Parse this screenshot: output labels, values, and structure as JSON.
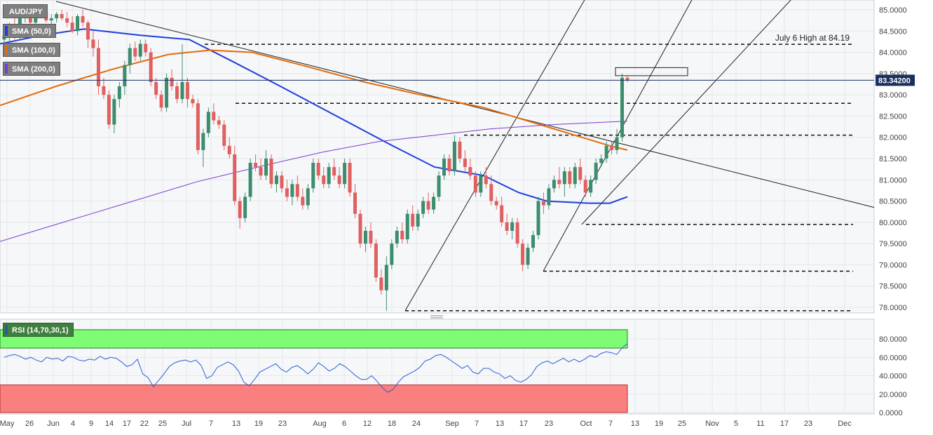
{
  "chart_data": [
    {
      "type": "candlestick",
      "instrument": "AUD/JPY",
      "ylim": [
        77.9,
        85.2
      ],
      "y_ticks": [
        "85.0000",
        "84.5000",
        "84.0000",
        "83.5000",
        "83.0000",
        "82.5000",
        "82.0000",
        "81.5000",
        "81.0000",
        "80.5000",
        "80.0000",
        "79.5000",
        "79.0000",
        "78.5000",
        "78.0000"
      ],
      "x_tick_labels": [
        "May",
        "26",
        "Jun",
        "4",
        "9",
        "14",
        "17",
        "22",
        "25",
        "Jul",
        "7",
        "13",
        "19",
        "23",
        "Aug",
        "6",
        "12",
        "18",
        "24",
        "Sep",
        "7",
        "13",
        "17",
        "23",
        "Oct",
        "7",
        "13",
        "19",
        "25",
        "Nov",
        "5",
        "11",
        "17",
        "23",
        "Dec"
      ],
      "last_price": "83.34200",
      "last_price_value": 83.342,
      "legend": [
        "SMA (50,0)",
        "SMA (100,0)",
        "SMA (200,0)"
      ],
      "colors": {
        "up": "#3c8d6e",
        "down": "#e06060",
        "sma50": "#1f3fd8",
        "sma100": "#e36c0a",
        "sma200": "#7a3ccc",
        "price_line": "#1a2f5e"
      },
      "annotations": [
        {
          "text": "July 6 High at 84.19",
          "level": 84.19
        }
      ],
      "horizontal_levels": [
        84.19,
        82.8,
        82.05,
        79.95,
        78.85,
        77.92
      ],
      "candles": [
        [
          84.3,
          84.55,
          84.1,
          84.4
        ],
        [
          84.4,
          84.7,
          84.2,
          84.6
        ],
        [
          84.6,
          84.9,
          84.3,
          84.35
        ],
        [
          84.35,
          84.95,
          84.3,
          84.9
        ],
        [
          84.9,
          85.1,
          84.7,
          85.0
        ],
        [
          85.0,
          85.05,
          84.6,
          84.7
        ],
        [
          84.7,
          84.9,
          84.5,
          84.85
        ],
        [
          84.85,
          85.1,
          84.8,
          84.95
        ],
        [
          84.95,
          85.05,
          84.7,
          84.75
        ],
        [
          84.75,
          84.9,
          84.6,
          84.8
        ],
        [
          84.8,
          84.95,
          84.7,
          84.9
        ],
        [
          84.9,
          85.0,
          84.75,
          84.8
        ],
        [
          84.8,
          84.95,
          84.6,
          84.7
        ],
        [
          84.7,
          84.85,
          84.45,
          84.5
        ],
        [
          84.5,
          84.9,
          84.4,
          84.85
        ],
        [
          84.85,
          85.0,
          84.6,
          84.7
        ],
        [
          84.7,
          84.75,
          84.1,
          84.3
        ],
        [
          84.3,
          84.5,
          83.9,
          84.1
        ],
        [
          84.1,
          84.3,
          83.0,
          83.2
        ],
        [
          83.2,
          83.4,
          82.9,
          83.0
        ],
        [
          83.0,
          83.1,
          82.2,
          82.3
        ],
        [
          82.3,
          83.0,
          82.1,
          82.9
        ],
        [
          82.9,
          83.3,
          82.7,
          83.2
        ],
        [
          83.2,
          83.8,
          83.0,
          83.7
        ],
        [
          83.7,
          84.2,
          83.5,
          84.1
        ],
        [
          84.1,
          84.25,
          83.8,
          83.9
        ],
        [
          83.9,
          84.3,
          83.8,
          84.2
        ],
        [
          84.2,
          84.3,
          83.9,
          84.0
        ],
        [
          84.0,
          84.1,
          83.2,
          83.3
        ],
        [
          83.3,
          83.4,
          82.9,
          83.0
        ],
        [
          83.0,
          83.1,
          82.6,
          82.7
        ],
        [
          82.7,
          83.5,
          82.6,
          83.4
        ],
        [
          83.4,
          83.6,
          83.1,
          83.2
        ],
        [
          83.2,
          83.3,
          82.8,
          82.9
        ],
        [
          82.9,
          84.19,
          82.8,
          83.3
        ],
        [
          83.3,
          83.4,
          82.7,
          82.9
        ],
        [
          82.9,
          83.0,
          82.7,
          82.8
        ],
        [
          82.8,
          82.9,
          81.6,
          81.7
        ],
        [
          81.7,
          82.2,
          81.3,
          82.1
        ],
        [
          82.1,
          82.7,
          82.0,
          82.6
        ],
        [
          82.6,
          82.8,
          82.3,
          82.4
        ],
        [
          82.4,
          82.5,
          82.2,
          82.3
        ],
        [
          82.3,
          82.4,
          81.7,
          81.8
        ],
        [
          81.8,
          82.0,
          81.5,
          81.6
        ],
        [
          81.6,
          81.8,
          80.4,
          80.5
        ],
        [
          80.5,
          80.6,
          79.85,
          80.1
        ],
        [
          80.1,
          80.7,
          80.0,
          80.6
        ],
        [
          80.6,
          81.5,
          80.5,
          81.4
        ],
        [
          81.4,
          81.6,
          81.2,
          81.3
        ],
        [
          81.3,
          81.5,
          81.0,
          81.1
        ],
        [
          81.1,
          81.7,
          81.0,
          81.5
        ],
        [
          81.5,
          81.6,
          80.8,
          80.9
        ],
        [
          80.9,
          81.2,
          80.7,
          81.1
        ],
        [
          81.1,
          81.2,
          80.7,
          80.8
        ],
        [
          80.8,
          81.0,
          80.5,
          80.6
        ],
        [
          80.6,
          81.0,
          80.4,
          80.9
        ],
        [
          80.9,
          81.1,
          80.5,
          80.6
        ],
        [
          80.6,
          80.8,
          80.3,
          80.4
        ],
        [
          80.4,
          80.9,
          80.3,
          80.8
        ],
        [
          80.8,
          81.5,
          80.7,
          81.4
        ],
        [
          81.4,
          81.5,
          81.0,
          81.1
        ],
        [
          81.1,
          81.3,
          80.8,
          80.9
        ],
        [
          80.9,
          81.4,
          80.8,
          81.3
        ],
        [
          81.3,
          81.5,
          81.0,
          81.1
        ],
        [
          81.1,
          81.3,
          80.8,
          80.9
        ],
        [
          80.9,
          81.5,
          80.8,
          81.4
        ],
        [
          81.4,
          81.5,
          80.6,
          80.7
        ],
        [
          80.7,
          80.9,
          80.1,
          80.2
        ],
        [
          80.2,
          80.3,
          79.4,
          79.5
        ],
        [
          79.5,
          79.9,
          79.3,
          79.8
        ],
        [
          79.8,
          80.0,
          79.4,
          79.5
        ],
        [
          79.5,
          79.6,
          78.6,
          78.7
        ],
        [
          78.7,
          78.9,
          78.3,
          78.4
        ],
        [
          78.4,
          79.2,
          77.92,
          79.0
        ],
        [
          79.0,
          79.6,
          78.9,
          79.5
        ],
        [
          79.5,
          79.9,
          79.4,
          79.8
        ],
        [
          79.8,
          80.0,
          79.5,
          79.6
        ],
        [
          79.6,
          80.3,
          79.5,
          80.2
        ],
        [
          80.2,
          80.4,
          79.8,
          79.9
        ],
        [
          79.9,
          80.3,
          79.8,
          80.2
        ],
        [
          80.2,
          80.6,
          80.1,
          80.5
        ],
        [
          80.5,
          80.7,
          80.2,
          80.3
        ],
        [
          80.3,
          80.7,
          80.2,
          80.6
        ],
        [
          80.6,
          81.2,
          80.5,
          81.1
        ],
        [
          81.1,
          81.6,
          81.0,
          81.5
        ],
        [
          81.5,
          81.6,
          81.1,
          81.2
        ],
        [
          81.2,
          82.05,
          81.1,
          81.9
        ],
        [
          81.9,
          82.0,
          81.4,
          81.5
        ],
        [
          81.5,
          81.7,
          81.2,
          81.3
        ],
        [
          81.3,
          81.5,
          81.0,
          81.1
        ],
        [
          81.1,
          81.2,
          80.6,
          80.7
        ],
        [
          80.7,
          81.2,
          80.6,
          81.1
        ],
        [
          81.1,
          81.3,
          80.8,
          80.9
        ],
        [
          80.9,
          81.1,
          80.4,
          80.5
        ],
        [
          80.5,
          80.6,
          80.3,
          80.4
        ],
        [
          80.4,
          80.6,
          79.9,
          80.0
        ],
        [
          80.0,
          80.2,
          79.7,
          79.8
        ],
        [
          79.8,
          80.1,
          79.6,
          80.0
        ],
        [
          80.0,
          80.1,
          79.4,
          79.5
        ],
        [
          79.5,
          79.6,
          78.85,
          79.0
        ],
        [
          79.0,
          79.5,
          78.9,
          79.4
        ],
        [
          79.4,
          79.8,
          79.3,
          79.7
        ],
        [
          79.7,
          80.6,
          79.6,
          80.5
        ],
        [
          80.5,
          80.7,
          80.2,
          80.4
        ],
        [
          80.4,
          80.9,
          80.3,
          80.8
        ],
        [
          80.8,
          81.1,
          80.7,
          81.0
        ],
        [
          81.0,
          81.3,
          80.8,
          80.9
        ],
        [
          80.9,
          81.3,
          80.6,
          81.2
        ],
        [
          81.2,
          81.3,
          80.8,
          80.9
        ],
        [
          80.9,
          81.4,
          80.8,
          81.3
        ],
        [
          81.3,
          81.5,
          80.9,
          81.0
        ],
        [
          81.0,
          81.1,
          80.6,
          80.7
        ],
        [
          80.7,
          81.1,
          80.6,
          81.0
        ],
        [
          81.0,
          81.5,
          80.9,
          81.4
        ],
        [
          81.4,
          81.6,
          81.3,
          81.5
        ],
        [
          81.5,
          81.9,
          81.4,
          81.8
        ],
        [
          81.8,
          81.9,
          81.6,
          81.7
        ],
        [
          81.7,
          82.2,
          81.6,
          82.0
        ],
        [
          82.0,
          83.5,
          81.9,
          83.4
        ],
        [
          83.4,
          83.45,
          83.3,
          83.342
        ]
      ],
      "sma": {
        "SMA (50,0)": [
          [
            0,
            84.2
          ],
          [
            60,
            84.4
          ],
          [
            120,
            84.55
          ],
          [
            200,
            84.4
          ],
          [
            270,
            84.3
          ],
          [
            330,
            83.8
          ],
          [
            400,
            83.2
          ],
          [
            480,
            82.5
          ],
          [
            560,
            81.8
          ],
          [
            620,
            81.3
          ],
          [
            690,
            81.1
          ],
          [
            740,
            80.7
          ],
          [
            780,
            80.5
          ],
          [
            840,
            80.45
          ],
          [
            870,
            80.45
          ],
          [
            895,
            80.6
          ]
        ],
        "SMA (100,0)": [
          [
            0,
            82.75
          ],
          [
            80,
            83.2
          ],
          [
            160,
            83.6
          ],
          [
            240,
            83.95
          ],
          [
            300,
            84.05
          ],
          [
            360,
            84.0
          ],
          [
            430,
            83.7
          ],
          [
            520,
            83.3
          ],
          [
            600,
            83.0
          ],
          [
            690,
            82.7
          ],
          [
            760,
            82.35
          ],
          [
            820,
            82.05
          ],
          [
            870,
            81.8
          ],
          [
            895,
            81.7
          ]
        ],
        "SMA (200,0)": [
          [
            0,
            79.55
          ],
          [
            80,
            79.95
          ],
          [
            180,
            80.45
          ],
          [
            280,
            80.95
          ],
          [
            380,
            81.35
          ],
          [
            460,
            81.65
          ],
          [
            540,
            81.9
          ],
          [
            620,
            82.05
          ],
          [
            700,
            82.2
          ],
          [
            790,
            82.3
          ],
          [
            895,
            82.38
          ]
        ]
      }
    },
    {
      "type": "line",
      "name": "RSI (14,70,30,1)",
      "ylim": [
        0,
        90
      ],
      "y_ticks": [
        "80.0000",
        "60.0000",
        "40.0000",
        "20.0000",
        "0.0000"
      ],
      "overbought": 70,
      "oversold": 30,
      "values": [
        60,
        62,
        63,
        61,
        58,
        60,
        57,
        55,
        60,
        58,
        59,
        56,
        61,
        60,
        57,
        56,
        58,
        57,
        61,
        58,
        60,
        59,
        55,
        50,
        52,
        58,
        42,
        38,
        28,
        35,
        42,
        50,
        54,
        56,
        57,
        55,
        57,
        51,
        37,
        40,
        49,
        52,
        55,
        52,
        45,
        33,
        29,
        36,
        44,
        47,
        50,
        53,
        47,
        44,
        49,
        51,
        47,
        42,
        47,
        54,
        50,
        45,
        48,
        53,
        50,
        45,
        40,
        36,
        36,
        40,
        34,
        27,
        22,
        25,
        33,
        39,
        42,
        45,
        49,
        56,
        58,
        62,
        63,
        60,
        56,
        52,
        48,
        51,
        44,
        42,
        48,
        48,
        44,
        42,
        37,
        40,
        35,
        33,
        36,
        41,
        50,
        54,
        56,
        53,
        56,
        59,
        55,
        58,
        55,
        58,
        62,
        60,
        64,
        66,
        65,
        63,
        70,
        75
      ]
    }
  ]
}
